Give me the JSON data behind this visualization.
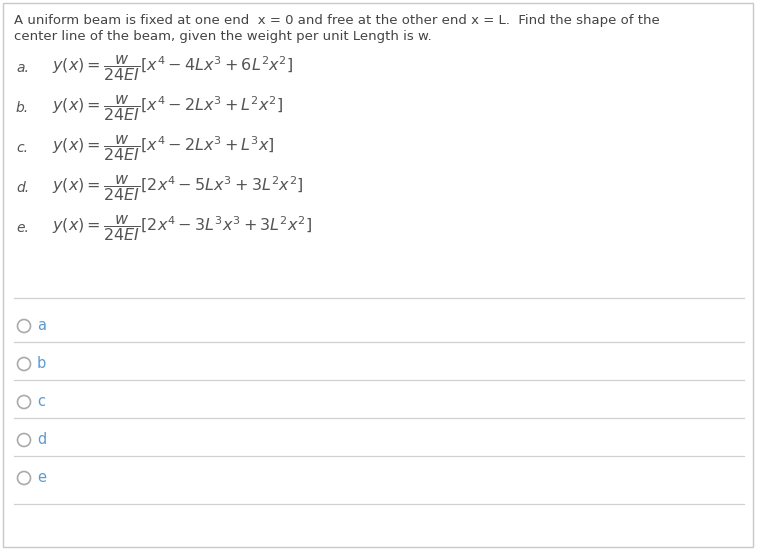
{
  "background_color": "#ffffff",
  "border_color": "#c8c8c8",
  "question_line1": "A uniform beam is fixed at one end  x = 0 and free at the other end x = L.  Find the shape of the",
  "question_line2": "center line of the beam, given the weight per unit Length is w.",
  "question_color": "#444444",
  "options": [
    {
      "label": "a.",
      "formula": "$y(x) = \\dfrac{w}{24EI}\\left[x^4 - 4Lx^3 + 6L^2x^2\\right]$"
    },
    {
      "label": "b.",
      "formula": "$y(x) = \\dfrac{w}{24EI}\\left[x^4 - 2Lx^3 + L^2x^2\\right]$"
    },
    {
      "label": "c.",
      "formula": "$y(x) = \\dfrac{w}{24EI}\\left[x^4 - 2Lx^3 + L^3x\\right]$"
    },
    {
      "label": "d.",
      "formula": "$y(x) = \\dfrac{w}{24EI}\\left[2x^4 - 5Lx^3 + 3L^2x^2\\right]$"
    },
    {
      "label": "e.",
      "formula": "$y(x) = \\dfrac{w}{24EI}\\left[2x^4 - 3L^3x^3 + 3L^2x^2\\right]$"
    }
  ],
  "radio_options": [
    "a",
    "b",
    "c",
    "d",
    "e"
  ],
  "option_text_color": "#555555",
  "label_color": "#555555",
  "radio_color": "#aaaaaa",
  "radio_label_color": "#5b9bd5",
  "line_color": "#d0d0d0",
  "fig_width": 7.58,
  "fig_height": 5.51,
  "dpi": 100
}
